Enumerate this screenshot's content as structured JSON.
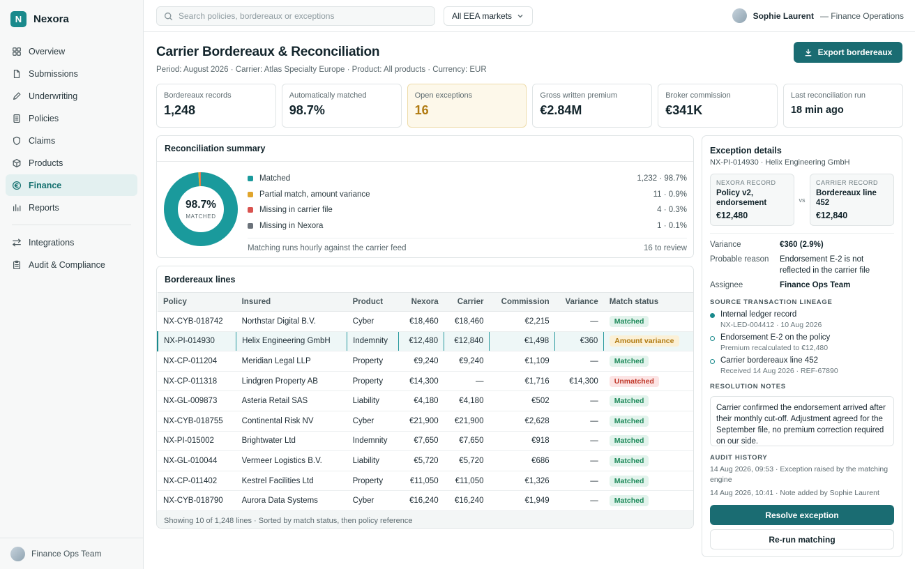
{
  "brand": {
    "logo_letter": "N",
    "name": "Nexora"
  },
  "nav": {
    "items": [
      {
        "label": "Overview",
        "icon": "grid-icon"
      },
      {
        "label": "Submissions",
        "icon": "document-icon"
      },
      {
        "label": "Underwriting",
        "icon": "pen-icon"
      },
      {
        "label": "Policies",
        "icon": "file-list-icon"
      },
      {
        "label": "Claims",
        "icon": "shield-icon"
      },
      {
        "label": "Products",
        "icon": "box-icon"
      },
      {
        "label": "Finance",
        "icon": "euro-circle-icon",
        "active": true
      },
      {
        "label": "Reports",
        "icon": "bar-chart-icon"
      }
    ],
    "secondary": [
      {
        "label": "Integrations",
        "icon": "arrows-icon"
      },
      {
        "label": "Audit & Compliance",
        "icon": "clipboard-icon"
      }
    ],
    "footer_label": "Finance Ops Team"
  },
  "topbar": {
    "search_placeholder": "Search policies, bordereaux or exceptions",
    "market_filter": "All EEA markets",
    "user_name": "Sophie Laurent",
    "user_role": "— Finance Operations"
  },
  "page": {
    "title": "Carrier Bordereaux & Reconciliation",
    "meta": "Period: August 2026  ·  Carrier: Atlas Specialty Europe  ·  Product: All products  ·  Currency: EUR",
    "export_label": "Export bordereaux"
  },
  "kpis": [
    {
      "label": "Bordereaux records",
      "value": "1,248"
    },
    {
      "label": "Automatically matched",
      "value": "98.7%"
    },
    {
      "label": "Open exceptions",
      "value": "16"
    },
    {
      "label": "Gross written premium",
      "value": "€2.84M"
    },
    {
      "label": "Broker commission",
      "value": "€341K"
    },
    {
      "label": "Last reconciliation run",
      "value": "18 min ago"
    }
  ],
  "summary": {
    "title": "Reconciliation summary",
    "center_value": "98.7%",
    "center_label": "MATCHED",
    "rows": [
      {
        "label": "Matched",
        "value": "1,232 · 98.7%",
        "count": 1232,
        "color": "#1a9a9c"
      },
      {
        "label": "Partial match, amount variance",
        "value": "11 · 0.9%",
        "count": 11,
        "color": "#e0a52c"
      },
      {
        "label": "Missing in carrier file",
        "value": "4 · 0.3%",
        "count": 4,
        "color": "#d9534f"
      },
      {
        "label": "Missing in Nexora",
        "value": "1 · 0.1%",
        "count": 1,
        "color": "#6b727a"
      }
    ],
    "footer_text": "Matching runs hourly against the carrier feed",
    "footer_value": "16 to review"
  },
  "lines": {
    "title": "Bordereaux lines",
    "columns": [
      "Policy",
      "Insured",
      "Product",
      "Nexora",
      "Carrier",
      "Commission",
      "Variance",
      "Match status"
    ],
    "rows": [
      {
        "policy": "NX-CYB-018742",
        "insured": "Northstar Digital B.V.",
        "product": "Cyber",
        "nexora": "€18,460",
        "carrier": "€18,460",
        "commission": "€2,215",
        "variance": "—",
        "status": "Matched",
        "kind": "ok"
      },
      {
        "policy": "NX-PI-014930",
        "insured": "Helix Engineering GmbH",
        "product": "Indemnity",
        "nexora": "€12,480",
        "carrier": "€12,840",
        "commission": "€1,498",
        "variance": "€360",
        "status": "Amount variance",
        "kind": "warn",
        "selected": true
      },
      {
        "policy": "NX-CP-011204",
        "insured": "Meridian Legal LLP",
        "product": "Property",
        "nexora": "€9,240",
        "carrier": "€9,240",
        "commission": "€1,109",
        "variance": "—",
        "status": "Matched",
        "kind": "ok"
      },
      {
        "policy": "NX-CP-011318",
        "insured": "Lindgren Property AB",
        "product": "Property",
        "nexora": "€14,300",
        "carrier": "—",
        "commission": "€1,716",
        "variance": "€14,300",
        "status": "Unmatched",
        "kind": "err"
      },
      {
        "policy": "NX-GL-009873",
        "insured": "Asteria Retail SAS",
        "product": "Liability",
        "nexora": "€4,180",
        "carrier": "€4,180",
        "commission": "€502",
        "variance": "—",
        "status": "Matched",
        "kind": "ok"
      },
      {
        "policy": "NX-CYB-018755",
        "insured": "Continental Risk NV",
        "product": "Cyber",
        "nexora": "€21,900",
        "carrier": "€21,900",
        "commission": "€2,628",
        "variance": "—",
        "status": "Matched",
        "kind": "ok"
      },
      {
        "policy": "NX-PI-015002",
        "insured": "Brightwater Ltd",
        "product": "Indemnity",
        "nexora": "€7,650",
        "carrier": "€7,650",
        "commission": "€918",
        "variance": "—",
        "status": "Matched",
        "kind": "ok"
      },
      {
        "policy": "NX-GL-010044",
        "insured": "Vermeer Logistics B.V.",
        "product": "Liability",
        "nexora": "€5,720",
        "carrier": "€5,720",
        "commission": "€686",
        "variance": "—",
        "status": "Matched",
        "kind": "ok"
      },
      {
        "policy": "NX-CP-011402",
        "insured": "Kestrel Facilities Ltd",
        "product": "Property",
        "nexora": "€11,050",
        "carrier": "€11,050",
        "commission": "€1,326",
        "variance": "—",
        "status": "Matched",
        "kind": "ok"
      },
      {
        "policy": "NX-CYB-018790",
        "insured": "Aurora Data Systems",
        "product": "Cyber",
        "nexora": "€16,240",
        "carrier": "€16,240",
        "commission": "€1,949",
        "variance": "—",
        "status": "Matched",
        "kind": "ok"
      }
    ],
    "footer": "Showing 10 of 1,248 lines · Sorted by match status, then policy reference"
  },
  "detail": {
    "title": "Exception details",
    "subtitle": "NX-PI-014930 · Helix Engineering GmbH",
    "nexora": {
      "header": "NEXORA RECORD",
      "title": "Policy v2, endorsement",
      "amount": "€12,480"
    },
    "vs": "vs",
    "carrier": {
      "header": "CARRIER RECORD",
      "title": "Bordereaux line 452",
      "amount": "€12,840"
    },
    "variance_label": "Variance",
    "variance_value": "€360 (2.9%)",
    "reason_label": "Probable reason",
    "reason_value": "Endorsement E-2 is not reflected in the carrier file",
    "assignee_label": "Assignee",
    "assignee_value": "Finance Ops Team",
    "lineage_title": "SOURCE TRANSACTION LINEAGE",
    "lineage": [
      {
        "title": "Internal ledger record",
        "sub": "NX-LED-004412 · 10 Aug 2026"
      },
      {
        "title": "Endorsement E-2 on the policy",
        "sub": "Premium recalculated to €12,480"
      },
      {
        "title": "Carrier bordereaux line 452",
        "sub": "Received 14 Aug 2026 · REF-67890"
      }
    ],
    "notes_title": "RESOLUTION NOTES",
    "notes": "Carrier confirmed the endorsement arrived after their monthly cut-off. Adjustment agreed for the September file, no premium correction required on our side.",
    "audit_title": "AUDIT HISTORY",
    "audit": [
      "14 Aug 2026, 09:53 · Exception raised by the matching engine",
      "14 Aug 2026, 10:41 · Note added by Sophie Laurent"
    ],
    "primary_action": "Resolve exception",
    "secondary_action": "Re-run matching"
  }
}
